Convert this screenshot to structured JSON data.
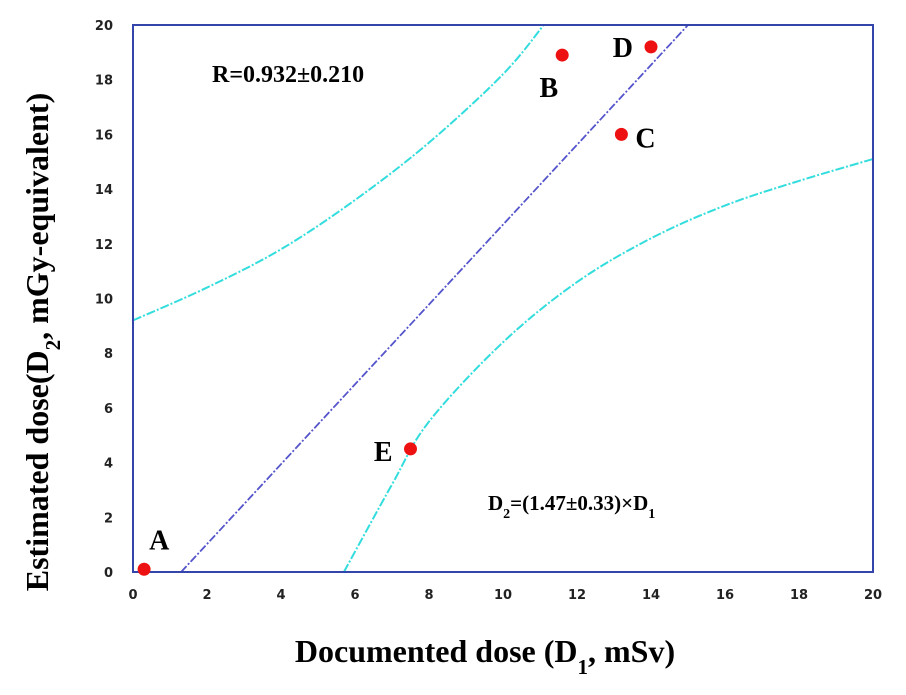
{
  "chart_data": {
    "type": "scatter",
    "title": "",
    "xlabel": {
      "prefix": "Documented dose (D",
      "sub": "1",
      "suffix": ", mSv)"
    },
    "ylabel": {
      "prefix": "Estimated dose(D",
      "sub": "2",
      "suffix": ", mGy-equivalent)"
    },
    "xlim": [
      0,
      20
    ],
    "ylim": [
      0,
      20
    ],
    "x_ticks": [
      "0",
      "2",
      "4",
      "6",
      "8",
      "10",
      "12",
      "14",
      "16",
      "18",
      "20"
    ],
    "y_ticks": [
      "0",
      "2",
      "4",
      "6",
      "8",
      "10",
      "12",
      "14",
      "16",
      "18",
      "20"
    ],
    "grid": false,
    "points": [
      {
        "label": "A",
        "x": 0.3,
        "y": 0.1
      },
      {
        "label": "B",
        "x": 11.6,
        "y": 18.9
      },
      {
        "label": "C",
        "x": 13.2,
        "y": 16.0
      },
      {
        "label": "D",
        "x": 14.0,
        "y": 19.2
      },
      {
        "label": "E",
        "x": 7.5,
        "y": 4.5
      }
    ],
    "fit_line": [
      [
        1.3,
        0
      ],
      [
        15.0,
        20.0
      ]
    ],
    "confidence_upper": [
      [
        0,
        9.2
      ],
      [
        2,
        10.4
      ],
      [
        4,
        11.8
      ],
      [
        6,
        13.6
      ],
      [
        8,
        15.7
      ],
      [
        10,
        18.2
      ],
      [
        11.1,
        20
      ]
    ],
    "confidence_lower": [
      [
        5.7,
        0
      ],
      [
        7,
        3.2
      ],
      [
        8,
        5.5
      ],
      [
        10,
        8.4
      ],
      [
        12,
        10.6
      ],
      [
        14,
        12.2
      ],
      [
        16,
        13.4
      ],
      [
        18,
        14.3
      ],
      [
        20,
        15.1
      ]
    ],
    "colors": {
      "points": "#ee1111",
      "fit_line": "#5555cc",
      "confidence": "#33dddd",
      "frame": "#3344aa"
    },
    "annotations": {
      "r_value": "R=0.932±0.210",
      "equation": {
        "a": "D",
        "a_sub": "2",
        "mid": "=(1.47±0.33)×D",
        "b_sub": "1"
      }
    }
  }
}
